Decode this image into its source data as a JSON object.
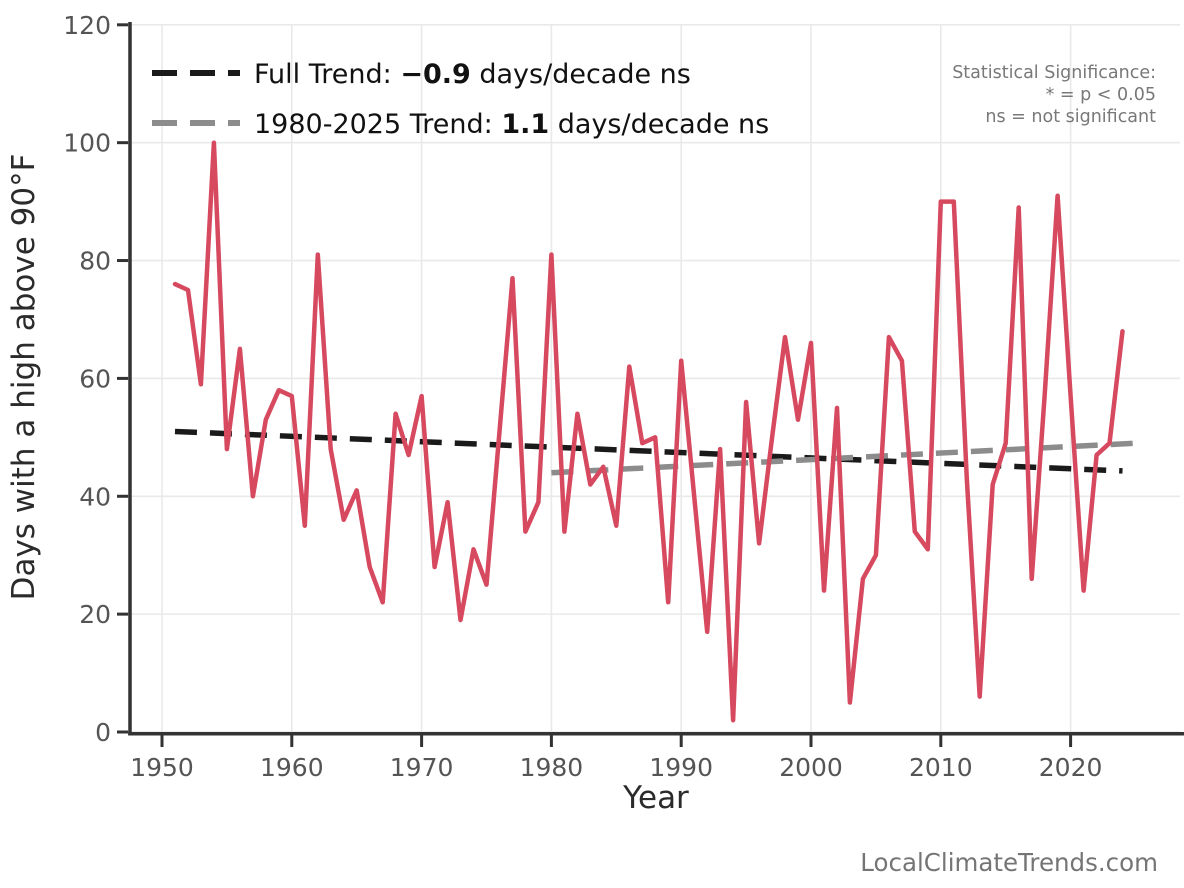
{
  "chart_data": {
    "type": "line",
    "xlabel": "Year",
    "ylabel": "Days with a high above 90°F",
    "ylim": [
      0,
      120
    ],
    "x_ticks": [
      1950,
      1960,
      1970,
      1980,
      1990,
      2000,
      2010,
      2020
    ],
    "y_ticks": [
      0,
      20,
      40,
      60,
      80,
      100,
      120
    ],
    "grid": true,
    "legend_position": "upper-left",
    "series": [
      {
        "name": "Days with a high above 90°F",
        "color": "#d6495f",
        "years": [
          1951,
          1952,
          1953,
          1954,
          1955,
          1956,
          1957,
          1958,
          1959,
          1960,
          1961,
          1962,
          1963,
          1964,
          1965,
          1966,
          1967,
          1968,
          1969,
          1970,
          1971,
          1972,
          1973,
          1974,
          1975,
          1976,
          1977,
          1978,
          1979,
          1980,
          1981,
          1982,
          1983,
          1984,
          1985,
          1986,
          1987,
          1988,
          1989,
          1990,
          1991,
          1992,
          1993,
          1994,
          1995,
          1996,
          1997,
          1998,
          1999,
          2000,
          2001,
          2002,
          2003,
          2004,
          2005,
          2006,
          2007,
          2008,
          2009,
          2010,
          2011,
          2012,
          2013,
          2014,
          2015,
          2016,
          2017,
          2018,
          2019,
          2020,
          2021,
          2022,
          2023,
          2024
        ],
        "values": [
          76,
          75,
          59,
          100,
          48,
          65,
          40,
          53,
          58,
          57,
          35,
          81,
          48,
          36,
          41,
          28,
          22,
          54,
          47,
          57,
          28,
          39,
          19,
          31,
          25,
          51,
          77,
          34,
          39,
          81,
          34,
          54,
          42,
          45,
          35,
          62,
          49,
          50,
          22,
          63,
          40,
          17,
          48,
          2,
          56,
          32,
          50,
          67,
          53,
          66,
          24,
          55,
          5,
          26,
          30,
          67,
          63,
          34,
          31,
          90,
          90,
          43,
          6,
          42,
          49,
          89,
          26,
          57,
          91,
          57,
          24,
          47,
          49,
          68
        ]
      }
    ],
    "trend_lines": [
      {
        "name": "full-trend",
        "slope_per_decade": -0.9,
        "significance": "ns",
        "x1": 1951,
        "y1": 51.0,
        "x2": 2024,
        "y2": 44.3,
        "color": "#1a1a1a"
      },
      {
        "name": "1980-2025-trend",
        "slope_per_decade": 1.1,
        "significance": "ns",
        "x1": 1980,
        "y1": 44.0,
        "x2": 2025,
        "y2": 49.0,
        "color": "#8c8c8c"
      }
    ]
  },
  "legend": {
    "entries": [
      {
        "prefix": "Full Trend: ",
        "value": "−0.9",
        "suffix": " days/decade ns",
        "color": "#1a1a1a"
      },
      {
        "prefix": "1980-2025 Trend: ",
        "value": "1.1",
        "suffix": " days/decade ns",
        "color": "#8c8c8c"
      }
    ]
  },
  "significance_note": {
    "line1": "Statistical Significance:",
    "line2": "* = p < 0.05",
    "line3": "ns = not significant"
  },
  "watermark": "LocalClimateTrends.com",
  "colors": {
    "series": "#d6495f",
    "trend_full": "#1a1a1a",
    "trend_recent": "#8c8c8c",
    "grid": "#e9e9e9",
    "spine": "#333333",
    "tick_label": "#555555",
    "note_gray": "#787878"
  }
}
